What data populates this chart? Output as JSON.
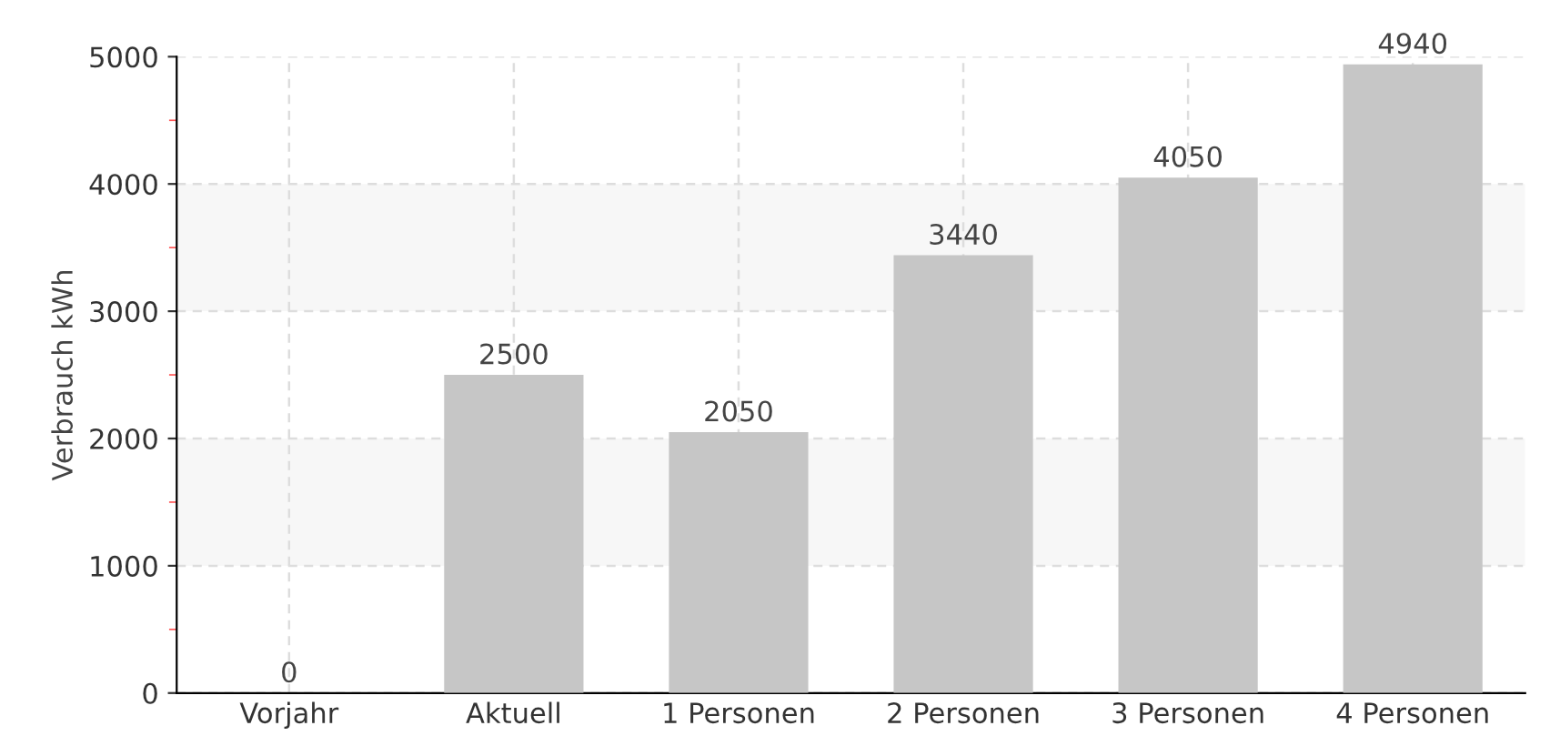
{
  "chart_data": {
    "type": "bar",
    "ylabel": "Verbrauch kWh",
    "categories": [
      "Vorjahr",
      "Aktuell",
      "1 Personen",
      "2 Personen",
      "3 Personen",
      "4 Personen"
    ],
    "values": [
      0,
      2500,
      2050,
      3440,
      4050,
      4940
    ],
    "color": "#c6c6c6",
    "ylim": [
      0,
      5000
    ],
    "yticks": [
      0,
      {
        "value": 500,
        "label": null
      },
      1000,
      {
        "value": 1500,
        "label": null
      },
      2000,
      {
        "value": 2500,
        "label": null
      },
      3000,
      {
        "value": 3500,
        "label": null
      },
      4000,
      {
        "value": 4500,
        "label": null
      },
      5000
    ],
    "bands": [
      {
        "axis": "y",
        "from": 1000,
        "to": 2000,
        "color": "#f7f7f7"
      },
      {
        "axis": "y",
        "from": 3000,
        "to": 4000,
        "color": "#f7f7f7"
      }
    ],
    "grid": true,
    "data_labels": true
  }
}
